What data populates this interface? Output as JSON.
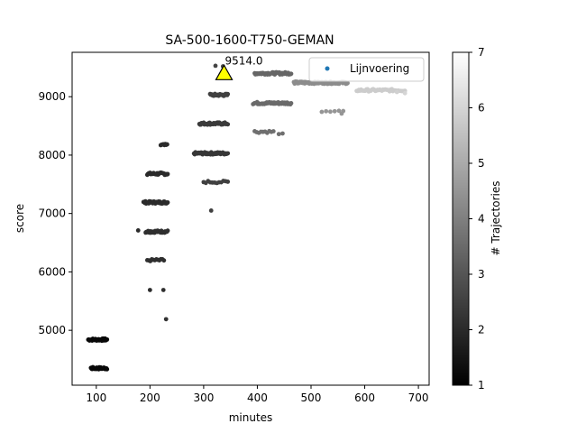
{
  "chart_data": {
    "type": "scatter",
    "title": "SA-500-1600-T750-GEMAN",
    "xlabel": "minutes",
    "ylabel": "score",
    "xlim": [
      55,
      720
    ],
    "ylim": [
      4060,
      9760
    ],
    "xticks": [
      100,
      200,
      300,
      400,
      500,
      600,
      700
    ],
    "yticks": [
      5000,
      6000,
      7000,
      8000,
      9000
    ],
    "grid": false,
    "legend": {
      "placement": "top-right",
      "entries": [
        "Lijnvoering"
      ]
    },
    "colorbar": {
      "label": "# Trajectories",
      "range": [
        1,
        7
      ],
      "ticks": [
        1,
        2,
        3,
        4,
        5,
        6,
        7
      ],
      "colormap": "gray"
    },
    "annotation": {
      "text": "9514.0",
      "marker": "triangle",
      "color": "#ffff00",
      "x": 338,
      "y": 9400
    },
    "clusters": [
      {
        "x": [
          85,
          120
        ],
        "y": 4840,
        "c": 1.2,
        "n": 30
      },
      {
        "x": [
          90,
          120
        ],
        "y": 4350,
        "c": 1.2,
        "n": 26
      },
      {
        "x": [
          195,
          233
        ],
        "y": 7680,
        "c": 2.0,
        "n": 30
      },
      {
        "x": [
          188,
          233
        ],
        "y": 7190,
        "c": 2.0,
        "n": 38
      },
      {
        "x": [
          192,
          233
        ],
        "y": 6690,
        "c": 2.1,
        "n": 36
      },
      {
        "x": [
          195,
          226
        ],
        "y": 6200,
        "c": 2.1,
        "n": 12
      },
      {
        "x": [
          220,
          232
        ],
        "y": 8170,
        "c": 2.0,
        "n": 8
      },
      {
        "x": [
          282,
          345
        ],
        "y": 8030,
        "c": 2.3,
        "n": 48
      },
      {
        "x": [
          292,
          345
        ],
        "y": 8540,
        "c": 2.4,
        "n": 40
      },
      {
        "x": [
          312,
          345
        ],
        "y": 9030,
        "c": 2.5,
        "n": 30
      },
      {
        "x": [
          300,
          345
        ],
        "y": 7540,
        "c": 2.5,
        "n": 12
      },
      {
        "x": [
          395,
          463
        ],
        "y": 9400,
        "c": 3.4,
        "n": 50
      },
      {
        "x": [
          392,
          463
        ],
        "y": 8890,
        "c": 3.5,
        "n": 48
      },
      {
        "x": [
          395,
          430
        ],
        "y": 8400,
        "c": 3.6,
        "n": 10
      },
      {
        "x": [
          468,
          568
        ],
        "y": 9240,
        "c": 4.3,
        "n": 70
      },
      {
        "x": [
          520,
          560
        ],
        "y": 8740,
        "c": 4.5,
        "n": 6
      },
      {
        "x": [
          585,
          675
        ],
        "y": 9110,
        "c": 5.8,
        "n": 45
      }
    ],
    "points": [
      {
        "x": 178,
        "y": 6710,
        "c": 2.0
      },
      {
        "x": 200,
        "y": 5690,
        "c": 2.0
      },
      {
        "x": 225,
        "y": 5690,
        "c": 2.1
      },
      {
        "x": 230,
        "y": 5190,
        "c": 2.2
      },
      {
        "x": 314,
        "y": 7050,
        "c": 2.5
      },
      {
        "x": 336,
        "y": 9520,
        "c": 2.6
      },
      {
        "x": 322,
        "y": 9530,
        "c": 2.6
      },
      {
        "x": 440,
        "y": 8360,
        "c": 3.6
      },
      {
        "x": 447,
        "y": 8370,
        "c": 3.6
      },
      {
        "x": 557,
        "y": 8710,
        "c": 4.5
      },
      {
        "x": 675,
        "y": 9060,
        "c": 6.0
      },
      {
        "x": 660,
        "y": 9080,
        "c": 5.9
      }
    ]
  }
}
